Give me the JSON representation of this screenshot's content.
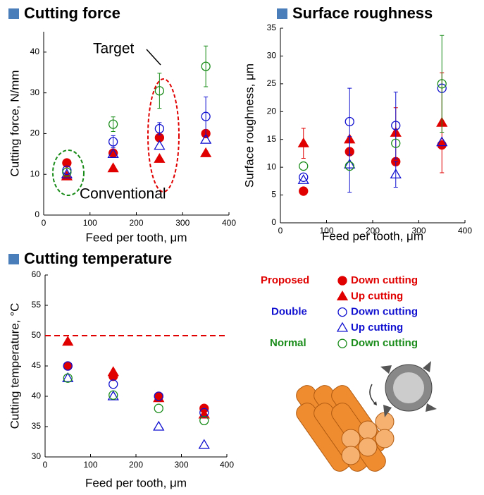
{
  "chart_data": [
    {
      "type": "scatter",
      "title": "Cutting force",
      "x_label": "Feed per tooth, μm",
      "y_label": "Cutting force, N/mm",
      "x": [
        50,
        150,
        250,
        350
      ],
      "xlim": [
        0,
        400
      ],
      "xticks": [
        0,
        100,
        200,
        300,
        400
      ],
      "ylim": [
        0,
        45
      ],
      "yticks": [
        0,
        10,
        20,
        30,
        40
      ],
      "annotations": [
        "Target",
        "Conventional"
      ],
      "series": [
        {
          "values": [
            12.8,
            15.2,
            19,
            20
          ]
        },
        {
          "values": [
            9.5,
            11.5,
            13.8,
            15.2
          ]
        },
        {
          "values": [
            11,
            18,
            21.2,
            24.2
          ],
          "errors": [
            null,
            1.5,
            1.5,
            4.8
          ]
        },
        {
          "values": [
            10,
            15,
            17,
            18.5
          ]
        },
        {
          "values": [
            10.5,
            22.3,
            30.5,
            36.5
          ],
          "errors": [
            null,
            1.8,
            4.3,
            5
          ]
        }
      ]
    },
    {
      "type": "scatter",
      "title": "Surface roughness",
      "x_label": "Feed per tooth, μm",
      "y_label": "Surface roughness, μm",
      "x": [
        50,
        150,
        250,
        350
      ],
      "xlim": [
        0,
        400
      ],
      "xticks": [
        0,
        100,
        200,
        300,
        400
      ],
      "ylim": [
        0,
        35
      ],
      "yticks": [
        0,
        5,
        10,
        15,
        20,
        25,
        30,
        35
      ],
      "series": [
        {
          "values": [
            5.7,
            12.8,
            11,
            14
          ]
        },
        {
          "values": [
            14.3,
            15,
            16.2,
            18
          ],
          "errors": [
            2.7,
            null,
            4.5,
            9
          ]
        },
        {
          "values": [
            8.2,
            18.2,
            17.5,
            24.2
          ],
          "errors": [
            null,
            6,
            6,
            null
          ]
        },
        {
          "values": [
            7.7,
            10.5,
            8.7,
            14.5
          ],
          "errors": [
            null,
            5,
            2.3,
            null
          ]
        },
        {
          "values": [
            10.2,
            10.2,
            14.3,
            25
          ],
          "errors": [
            null,
            null,
            null,
            8.7
          ]
        }
      ]
    },
    {
      "type": "scatter",
      "title": "Cutting temperature",
      "x_label": "Feed per tooth, μm",
      "y_label": "Cutting temperature, °C",
      "x": [
        50,
        150,
        250,
        350
      ],
      "xlim": [
        0,
        400
      ],
      "xticks": [
        0,
        100,
        200,
        300,
        400
      ],
      "ylim": [
        30,
        60
      ],
      "yticks": [
        30,
        35,
        40,
        45,
        50,
        55,
        60
      ],
      "reference_line": {
        "value": 50,
        "color": "#e00000"
      },
      "series": [
        {
          "values": [
            45,
            43.3,
            40,
            38
          ]
        },
        {
          "values": [
            49,
            44,
            39.7,
            37
          ]
        },
        {
          "values": [
            45,
            42,
            40,
            37.3
          ]
        },
        {
          "values": [
            43,
            40,
            35,
            32
          ]
        },
        {
          "values": [
            43,
            40.2,
            38,
            36
          ]
        }
      ]
    }
  ],
  "legend": [
    {
      "name": "Proposed",
      "color": "#e00000",
      "entries": [
        {
          "label": "Down cutting",
          "marker": "circle",
          "filled": true
        },
        {
          "label": "Up cutting",
          "marker": "triangle",
          "filled": true
        }
      ]
    },
    {
      "name": "Double",
      "color": "#1010d0",
      "entries": [
        {
          "label": "Down cutting",
          "marker": "circle",
          "filled": false
        },
        {
          "label": "Up cutting",
          "marker": "triangle",
          "filled": false
        }
      ]
    },
    {
      "name": "Normal",
      "color": "#1a8c1a",
      "entries": [
        {
          "label": "Down cutting",
          "marker": "circle",
          "filled": false
        }
      ]
    }
  ]
}
